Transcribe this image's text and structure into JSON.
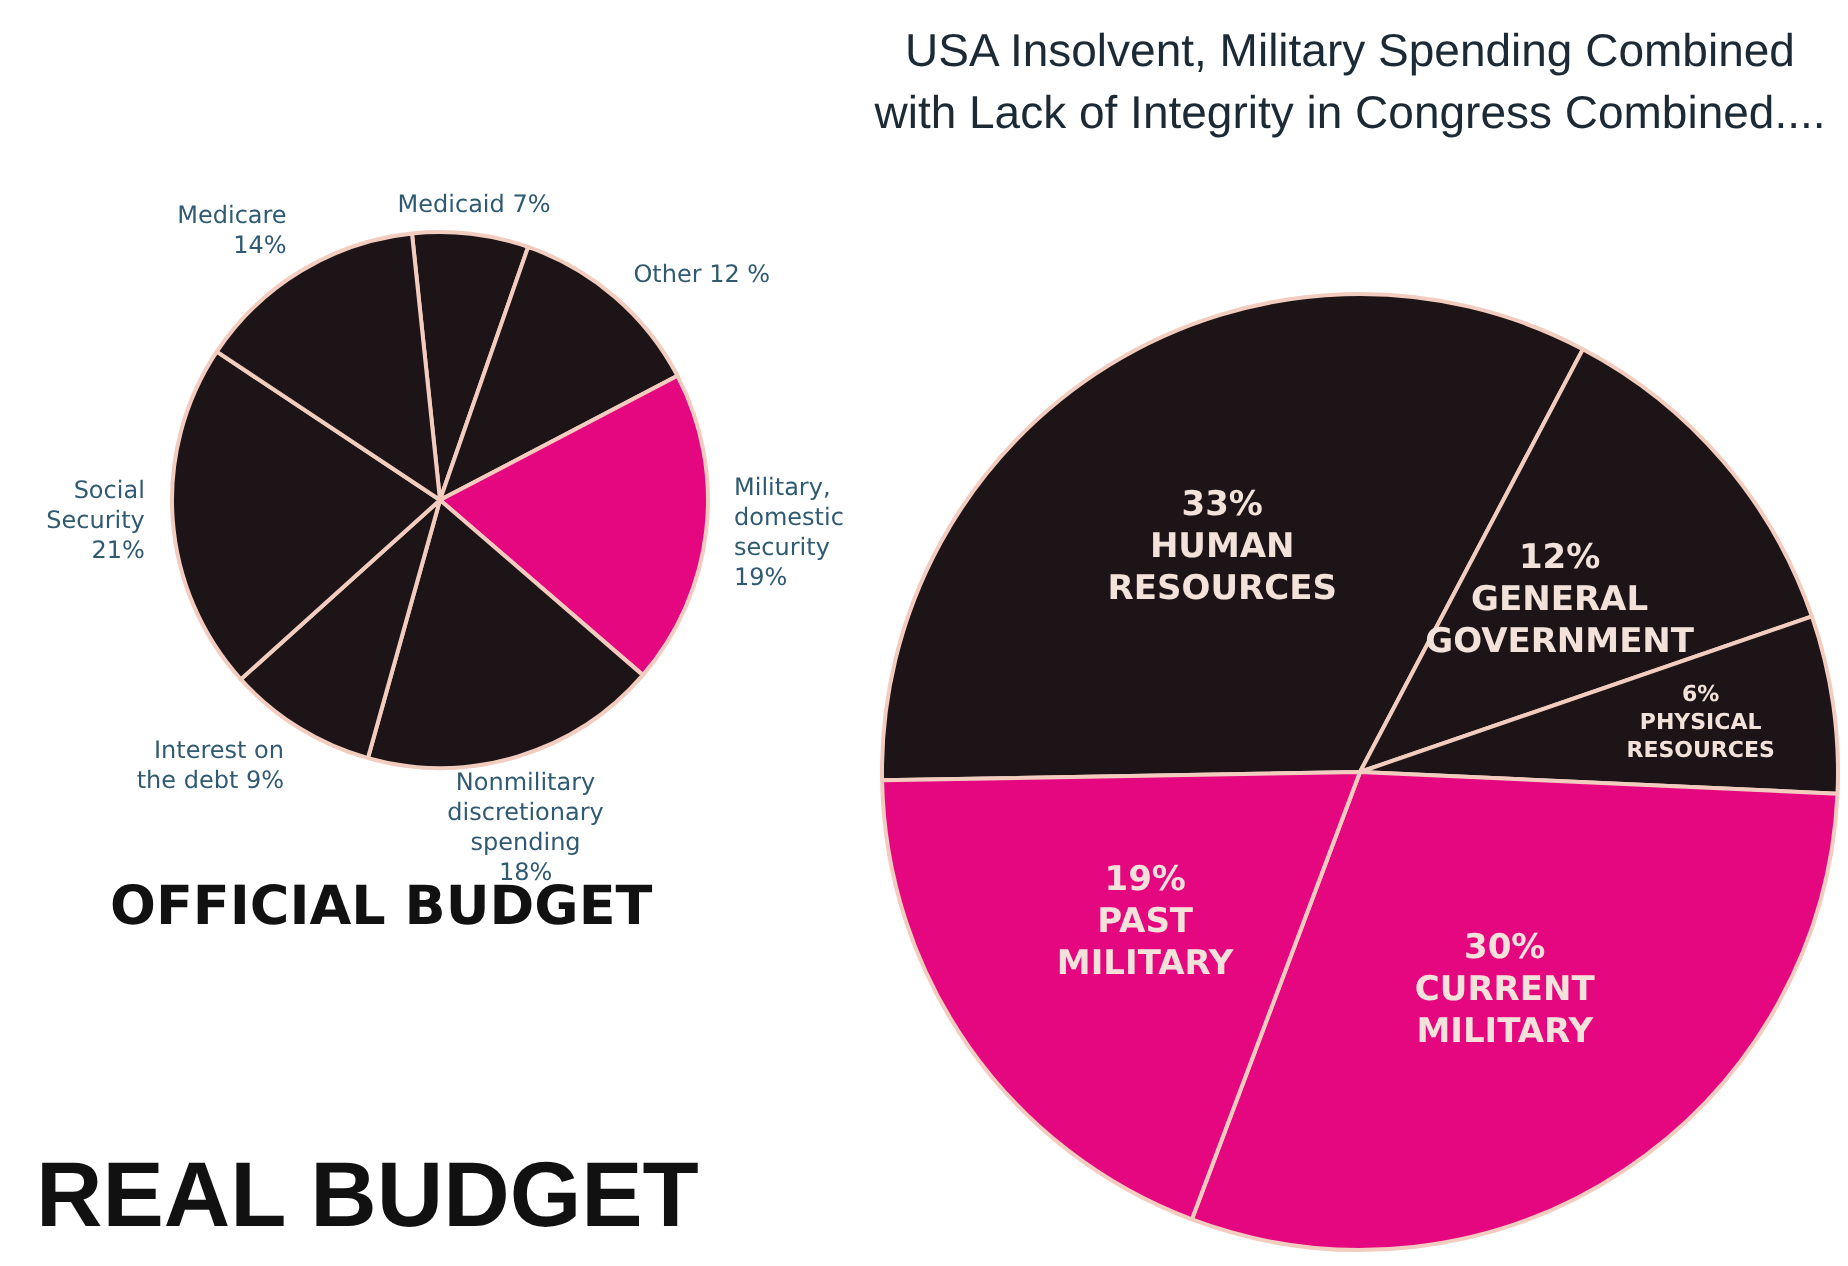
{
  "chart_data": [
    {
      "type": "pie",
      "title": "OFFICIAL BUDGET",
      "categories": [
        "Medicaid",
        "Other",
        "Military, domestic security",
        "Nonmilitary discretionary spending",
        "Interest on the debt",
        "Social Security",
        "Medicare"
      ],
      "values": [
        7,
        12,
        19,
        18,
        9,
        21,
        14
      ],
      "value_labels": [
        "7%",
        "12 %",
        "19%",
        "18%",
        "9%",
        "21%",
        "14%"
      ],
      "colors": [
        "#1c1416",
        "#1c1416",
        "#e5077f",
        "#1c1416",
        "#1c1416",
        "#1c1416",
        "#1c1416"
      ],
      "legend": false
    },
    {
      "type": "pie",
      "title": "USA Insolvent, Military Spending Combined with Lack of Integrity in Congress Combined....",
      "subtitle": "REAL BUDGET",
      "categories": [
        "HUMAN RESOURCES",
        "GENERAL GOVERNMENT",
        "PHYSICAL RESOURCES",
        "CURRENT MILITARY",
        "PAST MILITARY"
      ],
      "values": [
        33,
        12,
        6,
        30,
        19
      ],
      "value_labels": [
        "33%",
        "12%",
        "6%",
        "30%",
        "19%"
      ],
      "colors": [
        "#1c1416",
        "#1c1416",
        "#1c1416",
        "#e5077f",
        "#e5077f"
      ],
      "legend": false
    }
  ]
}
